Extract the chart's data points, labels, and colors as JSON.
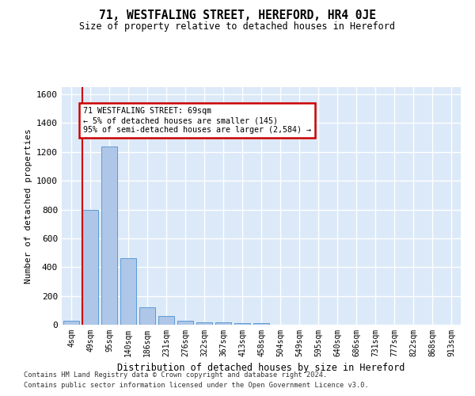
{
  "title": "71, WESTFALING STREET, HEREFORD, HR4 0JE",
  "subtitle": "Size of property relative to detached houses in Hereford",
  "xlabel": "Distribution of detached houses by size in Hereford",
  "ylabel": "Number of detached properties",
  "footer_line1": "Contains HM Land Registry data © Crown copyright and database right 2024.",
  "footer_line2": "Contains public sector information licensed under the Open Government Licence v3.0.",
  "bar_labels": [
    "4sqm",
    "49sqm",
    "95sqm",
    "140sqm",
    "186sqm",
    "231sqm",
    "276sqm",
    "322sqm",
    "367sqm",
    "413sqm",
    "458sqm",
    "504sqm",
    "549sqm",
    "595sqm",
    "640sqm",
    "686sqm",
    "731sqm",
    "777sqm",
    "822sqm",
    "868sqm",
    "913sqm"
  ],
  "bar_values": [
    25,
    800,
    1240,
    460,
    120,
    58,
    25,
    18,
    15,
    10,
    12,
    0,
    0,
    0,
    0,
    0,
    0,
    0,
    0,
    0,
    0
  ],
  "bar_color": "#aec6e8",
  "bar_edge_color": "#5b9bd5",
  "bg_color": "#dce9f8",
  "grid_color": "#ffffff",
  "annotation_text": "71 WESTFALING STREET: 69sqm\n← 5% of detached houses are smaller (145)\n95% of semi-detached houses are larger (2,584) →",
  "annotation_box_color": "#ffffff",
  "annotation_box_edge_color": "#cc0000",
  "vline_color": "#cc0000",
  "ylim": [
    0,
    1650
  ],
  "yticks": [
    0,
    200,
    400,
    600,
    800,
    1000,
    1200,
    1400,
    1600
  ]
}
